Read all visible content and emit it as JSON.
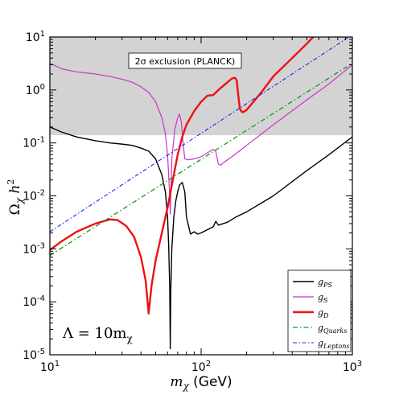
{
  "chart_data": {
    "type": "line",
    "xlabel_sym": "m",
    "xlabel_sub": "χ",
    "xlabel_unit": " (GeV)",
    "ylabel_sym": "Ω",
    "ylabel_sub": "χ",
    "ylabel_rest": " h",
    "ylabel_sup": "2",
    "xscale": "log",
    "yscale": "log",
    "xlim": [
      10,
      1000
    ],
    "ylim": [
      1e-05,
      10
    ],
    "x_ticks": [
      {
        "base": "10",
        "exp": "1"
      },
      {
        "base": "10",
        "exp": "2"
      },
      {
        "base": "10",
        "exp": "3"
      }
    ],
    "y_ticks": [
      {
        "base": "10",
        "exp": "-5"
      },
      {
        "base": "10",
        "exp": "-4"
      },
      {
        "base": "10",
        "exp": "-3"
      },
      {
        "base": "10",
        "exp": "-2"
      },
      {
        "base": "10",
        "exp": "-1"
      },
      {
        "base": "10",
        "exp": "0"
      },
      {
        "base": "10",
        "exp": "1"
      }
    ],
    "exclusion_region": {
      "y_from": 0.14,
      "y_to": 10,
      "label": "2σ exclusion (PLANCK)",
      "color": "#d3d3d3"
    },
    "annotation": {
      "text": "Λ = 10m",
      "sub": "χ"
    },
    "legend_position": "lower-right",
    "series": [
      {
        "name": "g",
        "sub": "PS",
        "color": "#000000",
        "width": 1.4,
        "dash": "",
        "points": [
          [
            10,
            0.2
          ],
          [
            12,
            0.16
          ],
          [
            15,
            0.13
          ],
          [
            20,
            0.11
          ],
          [
            25,
            0.1
          ],
          [
            30,
            0.095
          ],
          [
            35,
            0.09
          ],
          [
            40,
            0.08
          ],
          [
            45,
            0.07
          ],
          [
            50,
            0.05
          ],
          [
            55,
            0.025
          ],
          [
            58,
            0.012
          ],
          [
            60,
            0.004
          ],
          [
            61,
            0.0012
          ],
          [
            62,
            0.00018
          ],
          [
            62.5,
            1.3e-05
          ],
          [
            63,
            0.00015
          ],
          [
            64,
            0.001
          ],
          [
            66,
            0.004
          ],
          [
            68,
            0.008
          ],
          [
            70,
            0.012
          ],
          [
            72,
            0.016
          ],
          [
            75,
            0.018
          ],
          [
            78,
            0.012
          ],
          [
            80,
            0.004
          ],
          [
            85,
            0.0019
          ],
          [
            90,
            0.0021
          ],
          [
            95,
            0.0019
          ],
          [
            100,
            0.002
          ],
          [
            110,
            0.0023
          ],
          [
            120,
            0.0026
          ],
          [
            125,
            0.0033
          ],
          [
            130,
            0.0028
          ],
          [
            140,
            0.003
          ],
          [
            150,
            0.0032
          ],
          [
            170,
            0.004
          ],
          [
            200,
            0.005
          ],
          [
            300,
            0.01
          ],
          [
            500,
            0.03
          ],
          [
            700,
            0.06
          ],
          [
            1000,
            0.13
          ]
        ]
      },
      {
        "name": "g",
        "sub": "S",
        "color": "#cc33cc",
        "width": 1.2,
        "dash": "",
        "points": [
          [
            10,
            3.2
          ],
          [
            12,
            2.5
          ],
          [
            15,
            2.2
          ],
          [
            20,
            2.0
          ],
          [
            25,
            1.8
          ],
          [
            30,
            1.6
          ],
          [
            35,
            1.4
          ],
          [
            40,
            1.15
          ],
          [
            45,
            0.9
          ],
          [
            50,
            0.6
          ],
          [
            55,
            0.3
          ],
          [
            58,
            0.15
          ],
          [
            60,
            0.06
          ],
          [
            62,
            0.01
          ],
          [
            62.5,
            0.0045
          ],
          [
            63,
            0.01
          ],
          [
            64,
            0.05
          ],
          [
            67,
            0.18
          ],
          [
            70,
            0.3
          ],
          [
            72,
            0.35
          ],
          [
            74,
            0.25
          ],
          [
            76,
            0.1
          ],
          [
            78,
            0.05
          ],
          [
            82,
            0.048
          ],
          [
            90,
            0.05
          ],
          [
            100,
            0.055
          ],
          [
            110,
            0.065
          ],
          [
            120,
            0.075
          ],
          [
            125,
            0.07
          ],
          [
            130,
            0.04
          ],
          [
            135,
            0.038
          ],
          [
            140,
            0.042
          ],
          [
            160,
            0.055
          ],
          [
            200,
            0.09
          ],
          [
            300,
            0.22
          ],
          [
            500,
            0.65
          ],
          [
            700,
            1.3
          ],
          [
            1000,
            3.0
          ]
        ]
      },
      {
        "name": "g",
        "sub": "D",
        "color": "#ee1111",
        "width": 2.4,
        "dash": "",
        "points": [
          [
            10,
            0.00095
          ],
          [
            12,
            0.0014
          ],
          [
            15,
            0.0021
          ],
          [
            20,
            0.003
          ],
          [
            25,
            0.0036
          ],
          [
            28,
            0.0035
          ],
          [
            32,
            0.0027
          ],
          [
            36,
            0.0017
          ],
          [
            40,
            0.0007
          ],
          [
            43,
            0.00025
          ],
          [
            45,
            6e-05
          ],
          [
            47,
            0.0002
          ],
          [
            50,
            0.0006
          ],
          [
            55,
            0.002
          ],
          [
            60,
            0.006
          ],
          [
            65,
            0.02
          ],
          [
            70,
            0.06
          ],
          [
            75,
            0.13
          ],
          [
            80,
            0.22
          ],
          [
            90,
            0.4
          ],
          [
            100,
            0.6
          ],
          [
            110,
            0.78
          ],
          [
            120,
            0.8
          ],
          [
            130,
            1.0
          ],
          [
            145,
            1.3
          ],
          [
            160,
            1.65
          ],
          [
            168,
            1.7
          ],
          [
            172,
            1.5
          ],
          [
            176,
            0.8
          ],
          [
            180,
            0.45
          ],
          [
            185,
            0.39
          ],
          [
            190,
            0.38
          ],
          [
            200,
            0.42
          ],
          [
            250,
            0.9
          ],
          [
            300,
            1.8
          ],
          [
            400,
            4.0
          ],
          [
            500,
            7.5
          ],
          [
            560,
            10.5
          ]
        ]
      },
      {
        "name": "g",
        "sub": "Quarks",
        "color": "#119911",
        "width": 1.3,
        "dash": "6,3,1.5,3",
        "points": [
          [
            10,
            0.00075
          ],
          [
            1000,
            3.2
          ]
        ]
      },
      {
        "name": "g",
        "sub": "Leptons",
        "color": "#2222ee",
        "width": 1.1,
        "dash": "5,2.5,1.5,2.5",
        "points": [
          [
            10,
            0.0021
          ],
          [
            1000,
            11.0
          ]
        ]
      }
    ]
  }
}
